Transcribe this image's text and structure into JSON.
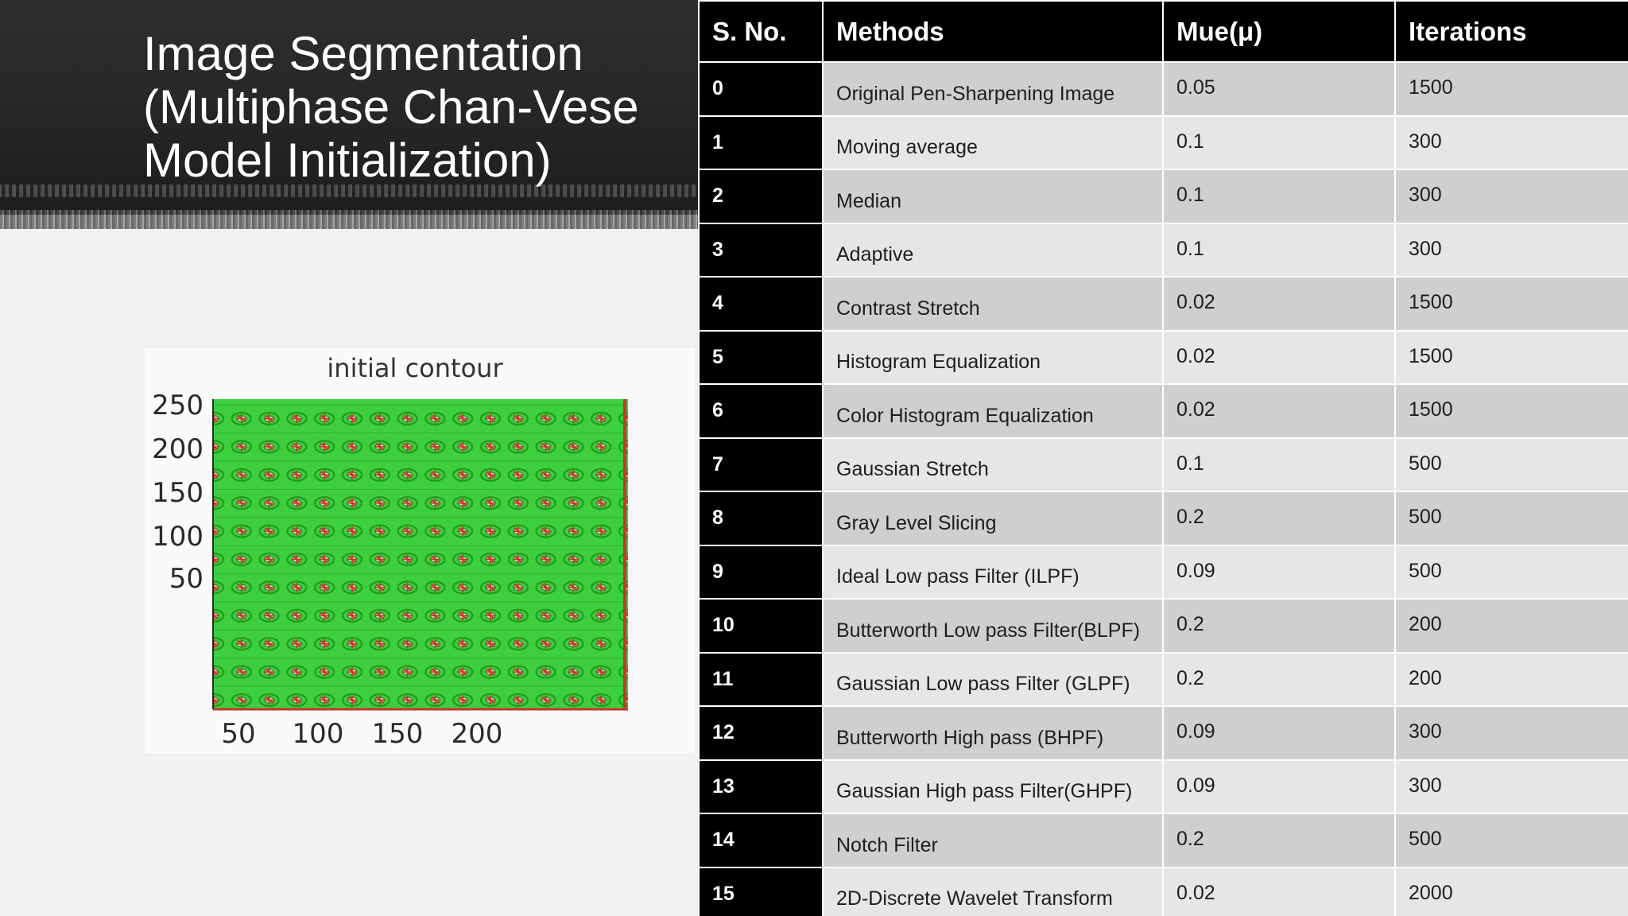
{
  "slide": {
    "title": "Image Segmentation\n(Multiphase Chan-Vese\nModel Initialization)"
  },
  "figure": {
    "title": "initial contour",
    "x_ticks": [
      "50",
      "100",
      "150",
      "200"
    ],
    "y_ticks": [
      "250",
      "200",
      "150",
      "100",
      "50"
    ],
    "colors": {
      "contour_fill": "#3ecf3e",
      "contour_line": "#c9342a",
      "background": "#fafafa"
    }
  },
  "table": {
    "headers": [
      "S. No.",
      "Methods",
      "Mue(μ)",
      "Iterations"
    ],
    "rows": [
      {
        "sno": "0",
        "method": "Original Pen-Sharpening Image",
        "mue": "0.05",
        "iterations": "1500"
      },
      {
        "sno": "1",
        "method": "Moving average",
        "mue": "0.1",
        "iterations": "300"
      },
      {
        "sno": "2",
        "method": "Median",
        "mue": "0.1",
        "iterations": "300"
      },
      {
        "sno": "3",
        "method": "Adaptive",
        "mue": "0.1",
        "iterations": "300"
      },
      {
        "sno": "4",
        "method": "Contrast Stretch",
        "mue": "0.02",
        "iterations": "1500"
      },
      {
        "sno": "5",
        "method": "Histogram Equalization",
        "mue": "0.02",
        "iterations": "1500"
      },
      {
        "sno": "6",
        "method": "Color Histogram Equalization",
        "mue": "0.02",
        "iterations": "1500"
      },
      {
        "sno": "7",
        "method": "Gaussian Stretch",
        "mue": "0.1",
        "iterations": "500"
      },
      {
        "sno": "8",
        "method": "Gray Level Slicing",
        "mue": "0.2",
        "iterations": "500"
      },
      {
        "sno": "9",
        "method": "Ideal Low pass Filter (ILPF)",
        "mue": "0.09",
        "iterations": "500"
      },
      {
        "sno": "10",
        "method": "Butterworth Low pass Filter(BLPF)",
        "mue": "0.2",
        "iterations": "200"
      },
      {
        "sno": "11",
        "method": "Gaussian Low pass Filter (GLPF)",
        "mue": "0.2",
        "iterations": "200"
      },
      {
        "sno": "12",
        "method": "Butterworth High pass (BHPF)",
        "mue": "0.09",
        "iterations": "300"
      },
      {
        "sno": "13",
        "method": "Gaussian High pass Filter(GHPF)",
        "mue": "0.09",
        "iterations": "300"
      },
      {
        "sno": "14",
        "method": "Notch Filter",
        "mue": "0.2",
        "iterations": "500"
      },
      {
        "sno": "15",
        "method": "2D-Discrete Wavelet Transform",
        "mue": "0.02",
        "iterations": "2000"
      }
    ],
    "colors": {
      "header_bg": "#000000",
      "row_dark": "#cfcfd0",
      "row_light": "#e6e6e6",
      "border": "#ffffff"
    }
  }
}
